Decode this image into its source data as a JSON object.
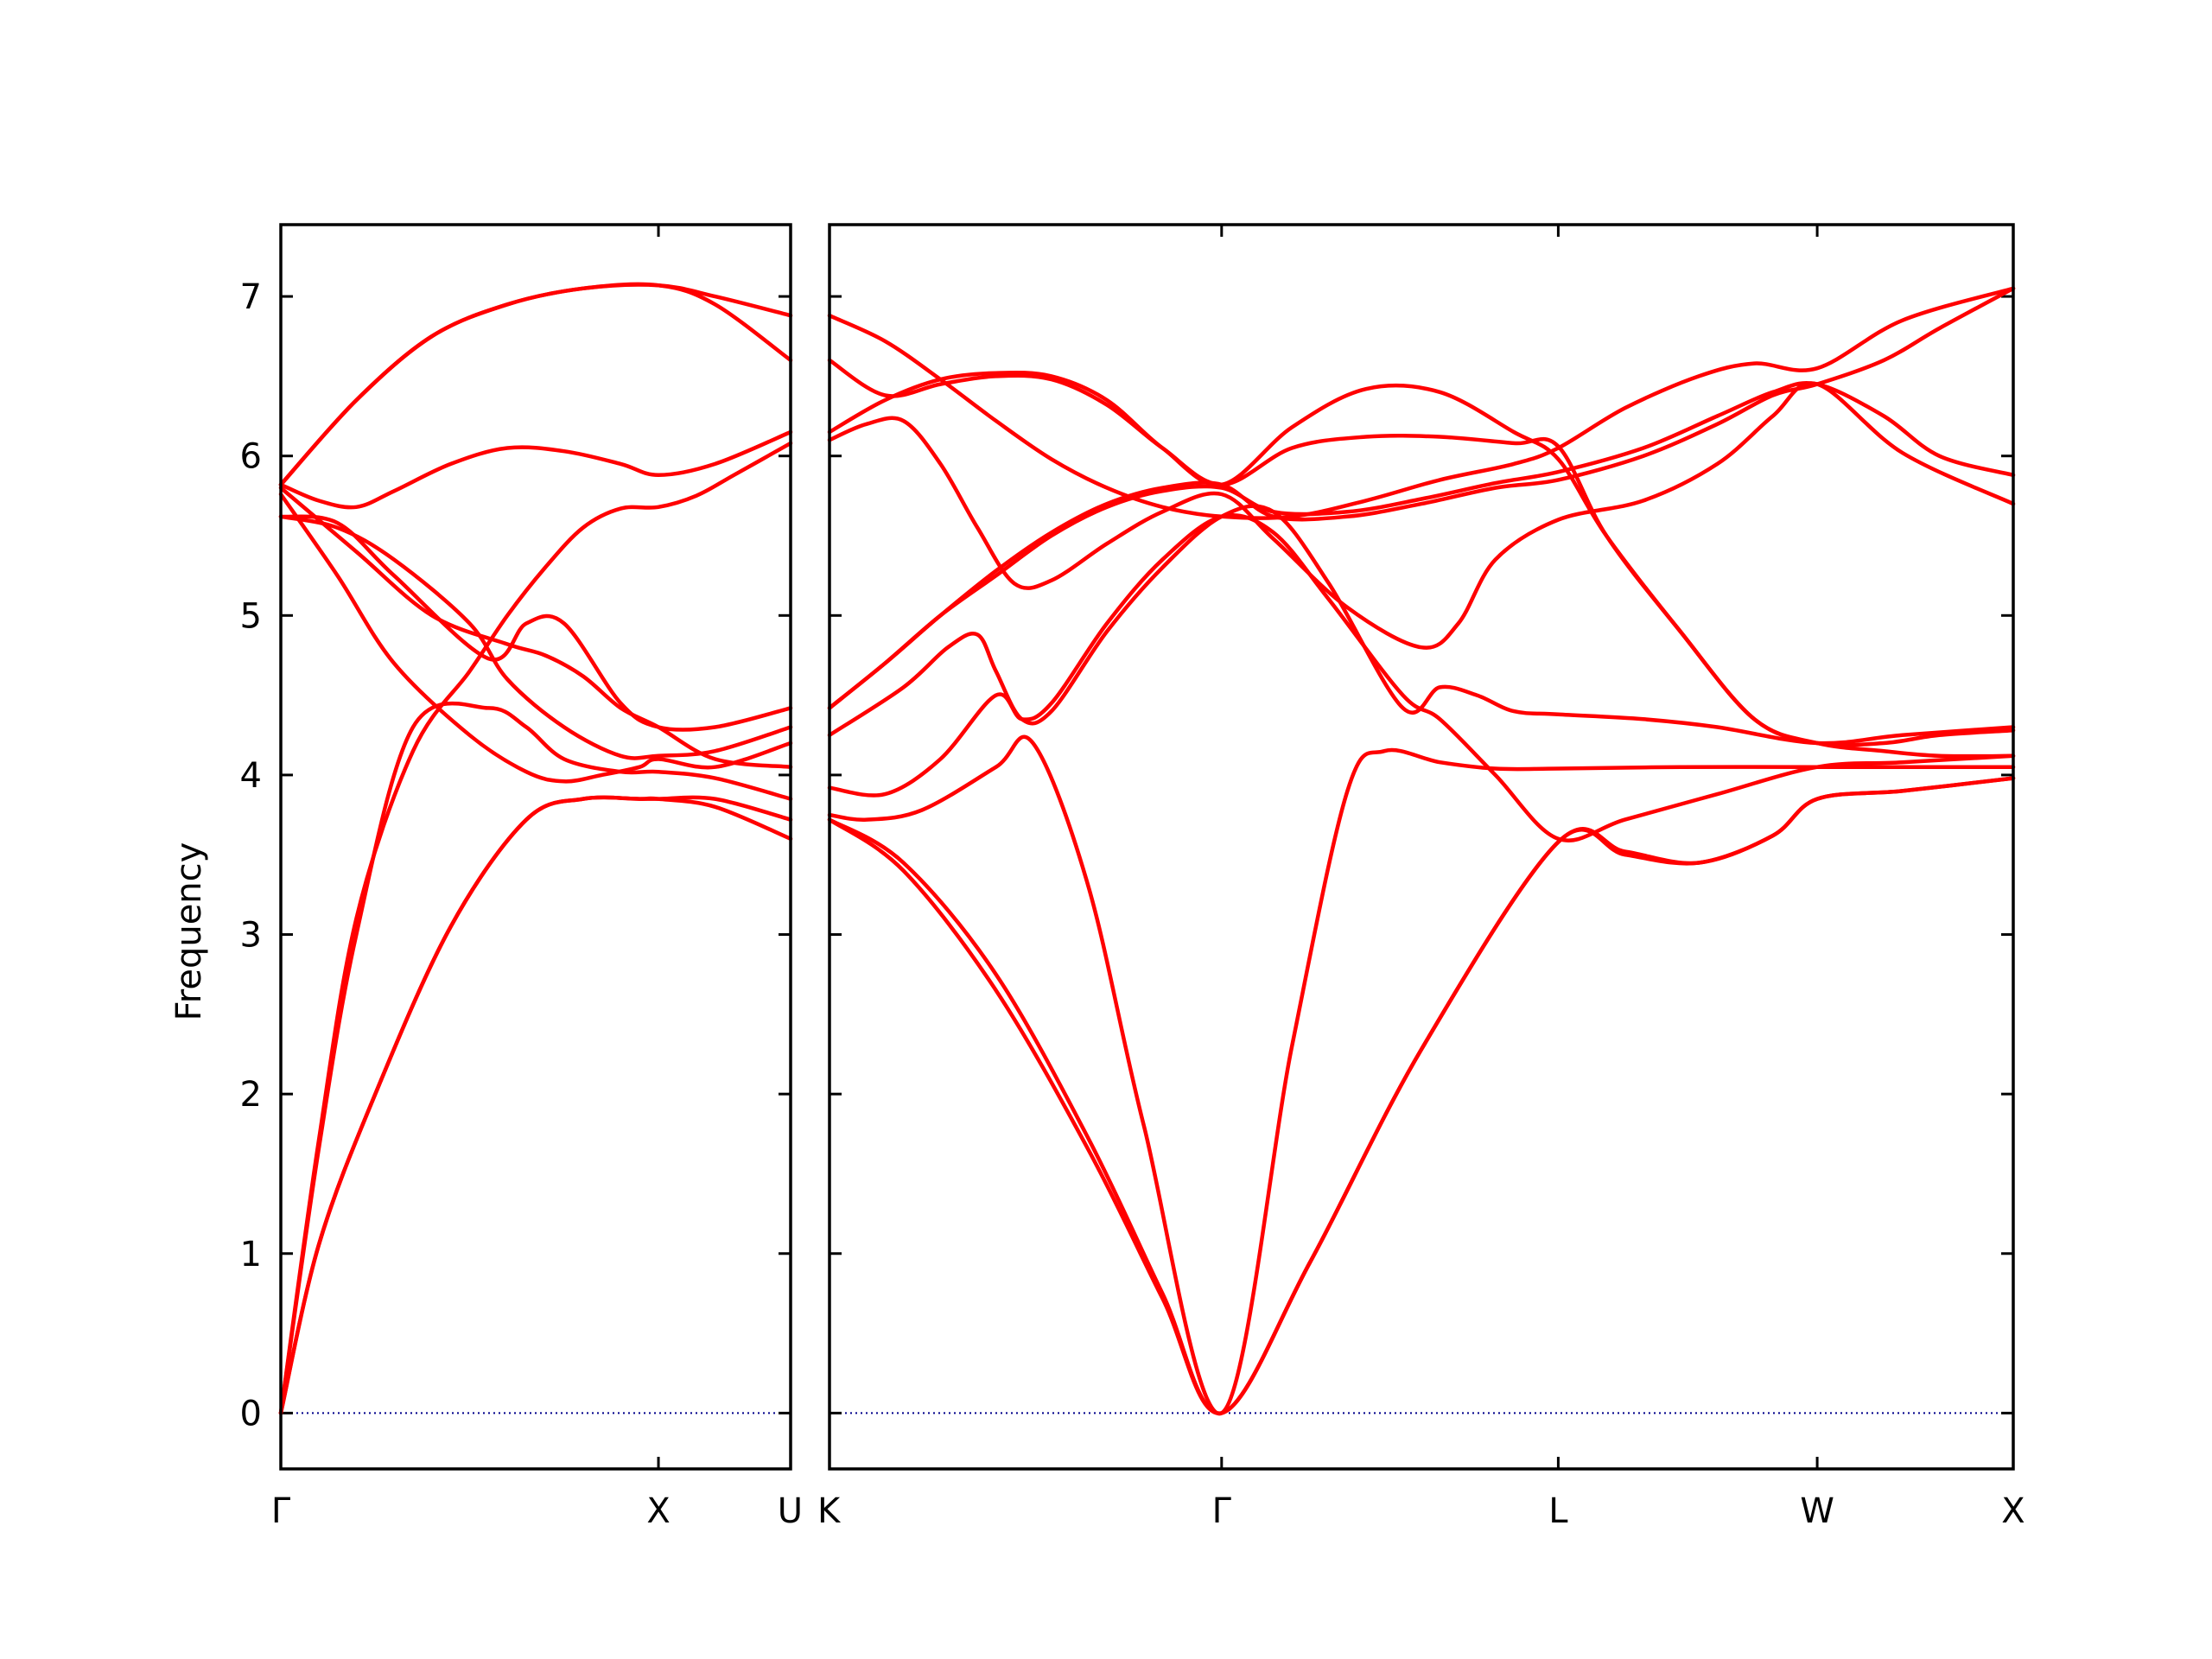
{
  "chart_data": {
    "type": "line",
    "title": "",
    "ylabel": "Frequency",
    "xlabel": "",
    "ylim": [
      -0.35,
      7.45
    ],
    "yticks": [
      0,
      1,
      2,
      3,
      4,
      5,
      6,
      7
    ],
    "grid": false,
    "legend": "none",
    "band_color": "#ff0000",
    "zero_line_color": "#00008b",
    "segments": [
      {
        "name": "",
        "x_range": [
          0,
          1.35
        ],
        "xticks": [
          {
            "x": 0,
            "label": "Γ"
          },
          {
            "x": 1.0,
            "label": "X"
          },
          {
            "x": 1.35,
            "label": "U"
          }
        ],
        "bands": [
          {
            "x": [
              0,
              0.1,
              0.25,
              0.45,
              0.65,
              0.8,
              0.95,
              1.0,
              1.15,
              1.35
            ],
            "y": [
              0,
              1.05,
              2.0,
              3.05,
              3.72,
              3.85,
              3.85,
              3.85,
              3.8,
              3.6
            ]
          },
          {
            "x": [
              0,
              0.1,
              0.25,
              0.45,
              0.65,
              0.8,
              0.95,
              1.0,
              1.15,
              1.35
            ],
            "y": [
              0,
              1.05,
              2.0,
              3.05,
              3.72,
              3.85,
              3.85,
              3.85,
              3.85,
              3.72
            ]
          },
          {
            "x": [
              0,
              0.1,
              0.2,
              0.35,
              0.55,
              0.65,
              0.75,
              0.9,
              1.0,
              1.15,
              1.35
            ],
            "y": [
              0,
              1.65,
              3.0,
              4.3,
              4.42,
              4.3,
              4.1,
              4.02,
              4.02,
              3.98,
              3.85
            ]
          },
          {
            "x": [
              0,
              0.15,
              0.3,
              0.5,
              0.65,
              0.75,
              0.85,
              0.95,
              1.0,
              1.15,
              1.35
            ],
            "y": [
              5.76,
              5.25,
              4.7,
              4.25,
              4.02,
              3.96,
              4.0,
              4.05,
              4.1,
              4.05,
              4.2
            ]
          },
          {
            "x": [
              0,
              0.15,
              0.3,
              0.5,
              0.6,
              0.75,
              0.9,
              1.0,
              1.15,
              1.35
            ],
            "y": [
              5.62,
              5.55,
              5.35,
              4.95,
              4.6,
              4.3,
              4.12,
              4.12,
              4.15,
              4.3
            ]
          },
          {
            "x": [
              0,
              0.15,
              0.3,
              0.55,
              0.65,
              0.75,
              0.9,
              1.0,
              1.15,
              1.35
            ],
            "y": [
              5.62,
              5.58,
              5.25,
              4.73,
              4.95,
              4.95,
              4.45,
              4.3,
              4.3,
              4.42
            ]
          },
          {
            "x": [
              0,
              0.2,
              0.4,
              0.6,
              0.7,
              0.8,
              0.9,
              1.0,
              1.15,
              1.35
            ],
            "y": [
              5.8,
              5.4,
              5.0,
              4.82,
              4.75,
              4.62,
              4.42,
              4.3,
              4.1,
              4.05
            ]
          },
          {
            "x": [
              0,
              0.1,
              0.2,
              0.35,
              0.5,
              0.6,
              0.7,
              0.8,
              0.9,
              1.0,
              1.1,
              1.2,
              1.35
            ],
            "y": [
              0,
              1.7,
              3.1,
              4.15,
              4.65,
              5.0,
              5.3,
              5.55,
              5.67,
              5.68,
              5.75,
              5.88,
              6.08
            ]
          },
          {
            "x": [
              0,
              0.1,
              0.2,
              0.3,
              0.45,
              0.6,
              0.75,
              0.9,
              1.0,
              1.15,
              1.35
            ],
            "y": [
              5.82,
              5.72,
              5.68,
              5.78,
              5.95,
              6.05,
              6.03,
              5.95,
              5.88,
              5.95,
              6.15
            ]
          },
          {
            "x": [
              0,
              0.2,
              0.4,
              0.6,
              0.8,
              1.0,
              1.15,
              1.35
            ],
            "y": [
              5.82,
              6.35,
              6.75,
              6.95,
              7.05,
              7.07,
              7.0,
              6.88
            ]
          },
          {
            "x": [
              0,
              0.2,
              0.4,
              0.6,
              0.8,
              1.0,
              1.15,
              1.35
            ],
            "y": [
              5.82,
              6.35,
              6.75,
              6.95,
              7.05,
              7.07,
              6.95,
              6.6
            ]
          }
        ]
      },
      {
        "name": "",
        "x_range": [
          0,
          3.2
        ],
        "xticks": [
          {
            "x": 0,
            "label": "K"
          },
          {
            "x": 1.06,
            "label": "Γ"
          },
          {
            "x": 1.97,
            "label": "L"
          },
          {
            "x": 2.67,
            "label": "W"
          },
          {
            "x": 3.2,
            "label": "X"
          }
        ],
        "bands": [
          {
            "x": [
              0,
              0.2,
              0.45,
              0.7,
              0.9,
              1.06,
              1.3,
              1.6,
              1.97,
              2.15,
              2.35,
              2.55,
              2.67,
              2.9,
              3.2
            ],
            "y": [
              3.72,
              3.4,
              2.65,
              1.65,
              0.72,
              0,
              0.95,
              2.28,
              3.58,
              3.5,
              3.45,
              3.62,
              3.85,
              3.9,
              3.98
            ]
          },
          {
            "x": [
              0,
              0.2,
              0.45,
              0.7,
              0.9,
              1.06,
              1.3,
              1.6,
              1.97,
              2.15,
              2.35,
              2.55,
              2.67,
              2.9,
              3.2
            ],
            "y": [
              3.72,
              3.45,
              2.75,
              1.72,
              0.75,
              0,
              0.95,
              2.28,
              3.58,
              3.52,
              3.45,
              3.62,
              3.85,
              3.9,
              3.98
            ]
          },
          {
            "x": [
              0,
              0.1,
              0.25,
              0.45,
              0.55,
              0.7,
              0.85,
              1.06,
              1.25,
              1.4,
              1.5,
              1.65,
              1.8,
              1.97,
              2.3,
              2.67,
              2.9,
              3.2
            ],
            "y": [
              3.75,
              3.72,
              3.78,
              4.05,
              4.2,
              3.3,
              1.8,
              0,
              2.3,
              3.9,
              4.15,
              4.08,
              4.04,
              4.04,
              4.05,
              4.05,
              4.05,
              4.05
            ]
          },
          {
            "x": [
              0,
              0.15,
              0.3,
              0.45,
              0.52,
              0.6,
              0.75,
              0.9,
              1.06,
              1.2,
              1.35,
              1.55,
              1.65,
              1.8,
              1.97,
              2.15,
              2.4,
              2.67,
              2.9,
              3.2
            ],
            "y": [
              3.92,
              3.88,
              4.1,
              4.5,
              4.35,
              4.45,
              4.95,
              5.35,
              5.62,
              5.52,
              5.1,
              4.5,
              4.35,
              4.0,
              3.6,
              3.72,
              3.88,
              4.05,
              4.08,
              4.12
            ]
          },
          {
            "x": [
              0,
              0.2,
              0.32,
              0.4,
              0.45,
              0.52,
              0.6,
              0.75,
              0.9,
              1.06,
              1.2,
              1.35,
              1.55,
              1.65,
              1.75,
              1.85,
              1.97,
              2.2,
              2.4,
              2.67,
              2.9,
              3.2
            ],
            "y": [
              4.25,
              4.55,
              4.8,
              4.88,
              4.65,
              4.35,
              4.4,
              4.9,
              5.3,
              5.62,
              5.65,
              5.2,
              4.42,
              4.55,
              4.5,
              4.4,
              4.38,
              4.35,
              4.3,
              4.2,
              4.25,
              4.3
            ]
          },
          {
            "x": [
              0,
              0.1,
              0.2,
              0.3,
              0.4,
              0.5,
              0.6,
              0.75,
              0.9,
              1.06,
              1.2,
              1.4,
              1.6,
              1.7,
              1.8,
              1.97,
              2.2,
              2.4,
              2.55,
              2.67,
              2.9,
              3.2
            ],
            "y": [
              6.1,
              6.2,
              6.22,
              5.95,
              5.55,
              5.2,
              5.22,
              5.45,
              5.65,
              5.76,
              5.48,
              5.05,
              4.8,
              4.95,
              5.35,
              5.6,
              5.72,
              5.95,
              6.25,
              6.45,
              6.02,
              5.7
            ]
          },
          {
            "x": [
              0,
              0.15,
              0.3,
              0.45,
              0.6,
              0.75,
              0.9,
              1.06,
              1.2,
              1.4,
              1.6,
              1.8,
              1.97,
              2.2,
              2.4,
              2.55,
              2.67,
              2.85,
              3.0,
              3.2
            ],
            "y": [
              4.42,
              4.7,
              5.0,
              5.25,
              5.5,
              5.68,
              5.78,
              5.8,
              5.65,
              5.65,
              5.73,
              5.83,
              5.9,
              6.05,
              6.25,
              6.4,
              6.45,
              6.25,
              6.0,
              5.88
            ]
          },
          {
            "x": [
              0,
              0.15,
              0.3,
              0.45,
              0.6,
              0.75,
              0.9,
              1.06,
              1.2,
              1.4,
              1.6,
              1.8,
              1.97,
              2.2,
              2.4,
              2.55,
              2.67,
              2.85,
              3.0,
              3.2
            ],
            "y": [
              4.42,
              4.7,
              5.0,
              5.28,
              5.52,
              5.7,
              5.8,
              5.82,
              5.62,
              5.62,
              5.7,
              5.8,
              5.85,
              6.0,
              6.2,
              6.38,
              6.45,
              6.6,
              6.8,
              7.05
            ]
          },
          {
            "x": [
              0,
              0.15,
              0.3,
              0.45,
              0.6,
              0.75,
              0.9,
              1.06,
              1.25,
              1.45,
              1.65,
              1.85,
              1.97,
              2.1,
              2.3,
              2.5,
              2.67,
              2.85,
              3.0,
              3.2
            ],
            "y": [
              6.15,
              6.35,
              6.48,
              6.52,
              6.5,
              6.35,
              6.05,
              5.82,
              6.18,
              6.42,
              6.4,
              6.15,
              5.98,
              5.5,
              4.9,
              4.35,
              4.2,
              4.2,
              4.25,
              4.28
            ]
          },
          {
            "x": [
              0,
              0.15,
              0.3,
              0.45,
              0.6,
              0.75,
              0.9,
              1.06,
              1.25,
              1.45,
              1.65,
              1.85,
              1.97,
              2.1,
              2.3,
              2.5,
              2.67,
              2.85,
              3.0,
              3.2
            ],
            "y": [
              6.6,
              6.38,
              6.45,
              6.5,
              6.48,
              6.32,
              6.05,
              5.82,
              6.05,
              6.12,
              6.12,
              6.08,
              6.06,
              5.5,
              4.9,
              4.35,
              4.2,
              4.15,
              4.12,
              4.12
            ]
          },
          {
            "x": [
              0,
              0.15,
              0.3,
              0.45,
              0.6,
              0.75,
              0.9,
              1.06,
              1.25,
              1.45,
              1.65,
              1.85,
              1.97,
              2.15,
              2.35,
              2.5,
              2.67,
              2.9,
              3.2
            ],
            "y": [
              6.88,
              6.72,
              6.48,
              6.22,
              5.98,
              5.8,
              5.68,
              5.62,
              5.62,
              5.72,
              5.85,
              5.95,
              6.05,
              6.3,
              6.5,
              6.58,
              6.55,
              6.85,
              7.05
            ]
          }
        ]
      }
    ]
  }
}
